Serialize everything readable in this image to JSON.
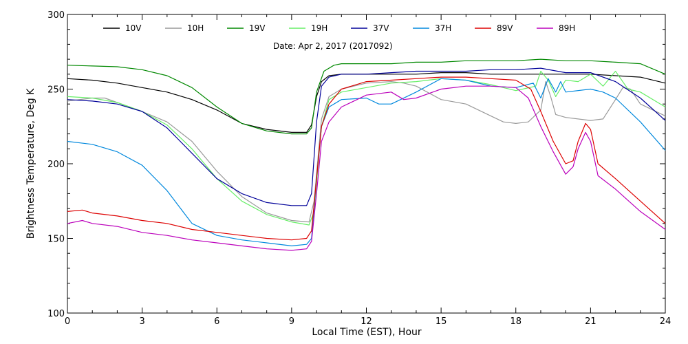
{
  "chart_data": {
    "type": "line",
    "title": "",
    "annotation": "Date: Apr  2, 2017 (2017092)",
    "xlabel": "Local Time (EST), Hour",
    "ylabel": "Brightness Temperature, Deg  K",
    "xlim": [
      0,
      24
    ],
    "ylim": [
      100,
      300
    ],
    "xticks": [
      0,
      3,
      6,
      9,
      12,
      15,
      18,
      21,
      24
    ],
    "yticks": [
      100,
      150,
      200,
      250,
      300
    ],
    "grid": false,
    "legend_position": "top",
    "series": [
      {
        "name": "10V",
        "color": "#000000",
        "points": [
          [
            0,
            257
          ],
          [
            1,
            256
          ],
          [
            2,
            254
          ],
          [
            3,
            251
          ],
          [
            4,
            248
          ],
          [
            5,
            243
          ],
          [
            6,
            236
          ],
          [
            7,
            227
          ],
          [
            8,
            223
          ],
          [
            9,
            221
          ],
          [
            9.6,
            221
          ],
          [
            9.8,
            226
          ],
          [
            10,
            245
          ],
          [
            10.2,
            255
          ],
          [
            10.5,
            259
          ],
          [
            11,
            260
          ],
          [
            12,
            260
          ],
          [
            13,
            260
          ],
          [
            14,
            260
          ],
          [
            15,
            261
          ],
          [
            16,
            261
          ],
          [
            17,
            260
          ],
          [
            18,
            260
          ],
          [
            19,
            260
          ],
          [
            20,
            260
          ],
          [
            21,
            260
          ],
          [
            22,
            259
          ],
          [
            23,
            258
          ],
          [
            24,
            254
          ]
        ]
      },
      {
        "name": "10H",
        "color": "#999999",
        "points": [
          [
            0,
            242
          ],
          [
            1,
            244
          ],
          [
            1.5,
            244
          ],
          [
            2,
            241
          ],
          [
            3,
            235
          ],
          [
            4,
            228
          ],
          [
            5,
            215
          ],
          [
            6,
            195
          ],
          [
            7,
            178
          ],
          [
            8,
            167
          ],
          [
            9,
            162
          ],
          [
            9.7,
            161
          ],
          [
            9.9,
            175
          ],
          [
            10.2,
            230
          ],
          [
            10.5,
            245
          ],
          [
            11,
            250
          ],
          [
            12,
            254
          ],
          [
            13,
            255
          ],
          [
            13.5,
            254
          ],
          [
            14,
            252
          ],
          [
            15,
            243
          ],
          [
            16,
            240
          ],
          [
            17,
            232
          ],
          [
            17.5,
            228
          ],
          [
            18,
            227
          ],
          [
            18.5,
            228
          ],
          [
            19,
            236
          ],
          [
            19.2,
            255
          ],
          [
            19.4,
            245
          ],
          [
            19.6,
            233
          ],
          [
            20,
            231
          ],
          [
            21,
            229
          ],
          [
            21.5,
            230
          ],
          [
            22,
            243
          ],
          [
            22.3,
            251
          ],
          [
            22.6,
            250
          ],
          [
            23,
            240
          ],
          [
            24,
            232
          ]
        ]
      },
      {
        "name": "19V",
        "color": "#008800",
        "points": [
          [
            0,
            266
          ],
          [
            1,
            265.5
          ],
          [
            2,
            265
          ],
          [
            3,
            263
          ],
          [
            4,
            259
          ],
          [
            5,
            251
          ],
          [
            6,
            238
          ],
          [
            7,
            227
          ],
          [
            8,
            222
          ],
          [
            9,
            220
          ],
          [
            9.6,
            220
          ],
          [
            9.8,
            224
          ],
          [
            10,
            248
          ],
          [
            10.3,
            262
          ],
          [
            10.7,
            266
          ],
          [
            11,
            267
          ],
          [
            12,
            267
          ],
          [
            13,
            267
          ],
          [
            14,
            268
          ],
          [
            15,
            268
          ],
          [
            16,
            269
          ],
          [
            17,
            269
          ],
          [
            18,
            269
          ],
          [
            19,
            270
          ],
          [
            20,
            269
          ],
          [
            21,
            269
          ],
          [
            22,
            268
          ],
          [
            23,
            267
          ],
          [
            24,
            260
          ]
        ]
      },
      {
        "name": "19H",
        "color": "#66ee66",
        "points": [
          [
            0,
            245
          ],
          [
            1,
            244
          ],
          [
            2,
            241
          ],
          [
            3,
            235
          ],
          [
            4,
            226
          ],
          [
            5,
            210
          ],
          [
            6,
            190
          ],
          [
            7,
            175
          ],
          [
            8,
            166
          ],
          [
            9,
            161
          ],
          [
            9.7,
            159
          ],
          [
            9.9,
            168
          ],
          [
            10.2,
            225
          ],
          [
            10.5,
            243
          ],
          [
            11,
            248
          ],
          [
            12,
            251
          ],
          [
            13,
            254
          ],
          [
            14,
            255
          ],
          [
            15,
            257
          ],
          [
            16,
            256
          ],
          [
            17,
            253
          ],
          [
            18,
            249
          ],
          [
            18.8,
            252
          ],
          [
            19,
            262
          ],
          [
            19.3,
            256
          ],
          [
            19.6,
            245
          ],
          [
            20,
            256
          ],
          [
            20.5,
            255
          ],
          [
            21,
            260
          ],
          [
            21.5,
            252
          ],
          [
            22,
            262
          ],
          [
            22.5,
            250
          ],
          [
            23,
            248
          ],
          [
            24,
            238
          ]
        ]
      },
      {
        "name": "37V",
        "color": "#000099",
        "points": [
          [
            0,
            243
          ],
          [
            1,
            242
          ],
          [
            2,
            240
          ],
          [
            3,
            235
          ],
          [
            4,
            224
          ],
          [
            5,
            207
          ],
          [
            6,
            190
          ],
          [
            7,
            180
          ],
          [
            8,
            174
          ],
          [
            9,
            172
          ],
          [
            9.6,
            172
          ],
          [
            9.8,
            180
          ],
          [
            10,
            228
          ],
          [
            10.2,
            252
          ],
          [
            10.5,
            258
          ],
          [
            11,
            260
          ],
          [
            12,
            260
          ],
          [
            13,
            261
          ],
          [
            14,
            262
          ],
          [
            15,
            262
          ],
          [
            16,
            262
          ],
          [
            17,
            263
          ],
          [
            18,
            263
          ],
          [
            19,
            264
          ],
          [
            20,
            261
          ],
          [
            21,
            261
          ],
          [
            22,
            255
          ],
          [
            23,
            244
          ],
          [
            24,
            229
          ]
        ]
      },
      {
        "name": "37H",
        "color": "#0088dd",
        "points": [
          [
            0,
            215
          ],
          [
            1,
            213
          ],
          [
            2,
            208
          ],
          [
            3,
            199
          ],
          [
            4,
            182
          ],
          [
            5,
            160
          ],
          [
            6,
            152
          ],
          [
            7,
            149
          ],
          [
            8,
            147
          ],
          [
            9,
            145
          ],
          [
            9.6,
            146
          ],
          [
            9.8,
            150
          ],
          [
            10,
            190
          ],
          [
            10.2,
            225
          ],
          [
            10.5,
            238
          ],
          [
            11,
            243
          ],
          [
            12,
            244
          ],
          [
            12.5,
            240
          ],
          [
            13,
            240
          ],
          [
            14,
            248
          ],
          [
            15,
            257
          ],
          [
            16,
            256
          ],
          [
            17,
            252
          ],
          [
            18,
            251
          ],
          [
            18.7,
            254
          ],
          [
            19,
            244
          ],
          [
            19.3,
            257
          ],
          [
            19.6,
            248
          ],
          [
            19.8,
            255
          ],
          [
            20,
            248
          ],
          [
            21,
            250
          ],
          [
            21.5,
            248
          ],
          [
            22,
            244
          ],
          [
            23,
            228
          ],
          [
            24,
            209
          ]
        ]
      },
      {
        "name": "89V",
        "color": "#dd0000",
        "points": [
          [
            0,
            168
          ],
          [
            0.6,
            169
          ],
          [
            1,
            167
          ],
          [
            2,
            165
          ],
          [
            3,
            162
          ],
          [
            4,
            160
          ],
          [
            5,
            156
          ],
          [
            6,
            154
          ],
          [
            7,
            152
          ],
          [
            8,
            150
          ],
          [
            9,
            149
          ],
          [
            9.6,
            150
          ],
          [
            9.8,
            155
          ],
          [
            10,
            190
          ],
          [
            10.2,
            225
          ],
          [
            10.5,
            240
          ],
          [
            11,
            250
          ],
          [
            12,
            255
          ],
          [
            13,
            256
          ],
          [
            14,
            257
          ],
          [
            15,
            258
          ],
          [
            16,
            258
          ],
          [
            17,
            257
          ],
          [
            18,
            256
          ],
          [
            18.6,
            250
          ],
          [
            19,
            235
          ],
          [
            19.5,
            215
          ],
          [
            20,
            200
          ],
          [
            20.3,
            202
          ],
          [
            20.5,
            215
          ],
          [
            20.8,
            227
          ],
          [
            21,
            223
          ],
          [
            21.3,
            200
          ],
          [
            22,
            190
          ],
          [
            23,
            175
          ],
          [
            24,
            160
          ]
        ]
      },
      {
        "name": "89H",
        "color": "#bb00bb",
        "points": [
          [
            0,
            160
          ],
          [
            0.6,
            162
          ],
          [
            1,
            160
          ],
          [
            2,
            158
          ],
          [
            3,
            154
          ],
          [
            4,
            152
          ],
          [
            5,
            149
          ],
          [
            6,
            147
          ],
          [
            7,
            145
          ],
          [
            8,
            143
          ],
          [
            9,
            142
          ],
          [
            9.6,
            143
          ],
          [
            9.8,
            148
          ],
          [
            10,
            180
          ],
          [
            10.2,
            215
          ],
          [
            10.5,
            228
          ],
          [
            11,
            238
          ],
          [
            12,
            246
          ],
          [
            13,
            248
          ],
          [
            13.5,
            243
          ],
          [
            14,
            244
          ],
          [
            15,
            250
          ],
          [
            16,
            252
          ],
          [
            17,
            252
          ],
          [
            18,
            251
          ],
          [
            18.5,
            244
          ],
          [
            19,
            225
          ],
          [
            19.5,
            208
          ],
          [
            20,
            193
          ],
          [
            20.3,
            198
          ],
          [
            20.5,
            210
          ],
          [
            20.8,
            221
          ],
          [
            21,
            215
          ],
          [
            21.3,
            192
          ],
          [
            22,
            183
          ],
          [
            23,
            168
          ],
          [
            24,
            156
          ]
        ]
      }
    ]
  }
}
